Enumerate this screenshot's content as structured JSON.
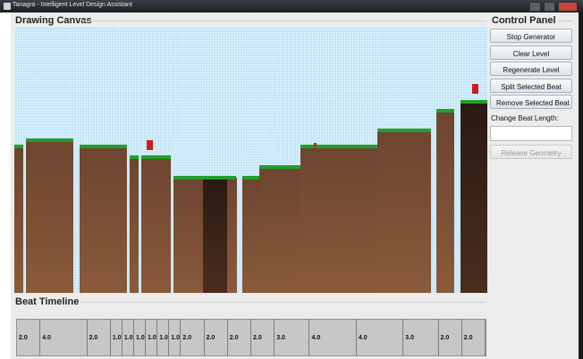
{
  "window": {
    "title": "Tanagra - Intelligent Level Design Assistant"
  },
  "canvas_section": {
    "title": "Drawing Canvas"
  },
  "timeline_section": {
    "title": "Beat Timeline"
  },
  "control_panel": {
    "title": "Control Panel",
    "buttons": [
      {
        "label": "Stop Generator",
        "enabled": true
      },
      {
        "label": "Clear Level",
        "enabled": true
      },
      {
        "label": "Regenerate Level",
        "enabled": true
      },
      {
        "label": "Split Selected Beat",
        "enabled": true
      },
      {
        "label": "Remove Selected Beat",
        "enabled": true
      }
    ],
    "beat_length_label": "Change Beat Length:",
    "beat_length_value": "",
    "release_button": {
      "label": "Release Geometry",
      "enabled": false
    }
  },
  "beats": [
    "2.0",
    "4.0",
    "2.0",
    "1.0",
    "1.0",
    "1.0",
    "1.0",
    "1.0",
    "1.0",
    "2.0",
    "2.0",
    "2.0",
    "2.0",
    "3.0",
    "4.0",
    "4.0",
    "3.0",
    "2.0",
    "2.0"
  ],
  "colors": {
    "sky": "#bfe4f7",
    "ground": "#7a4f33",
    "grass": "#2aa02a",
    "pit": "#3a2418",
    "enemy": "#cc1c1c"
  }
}
